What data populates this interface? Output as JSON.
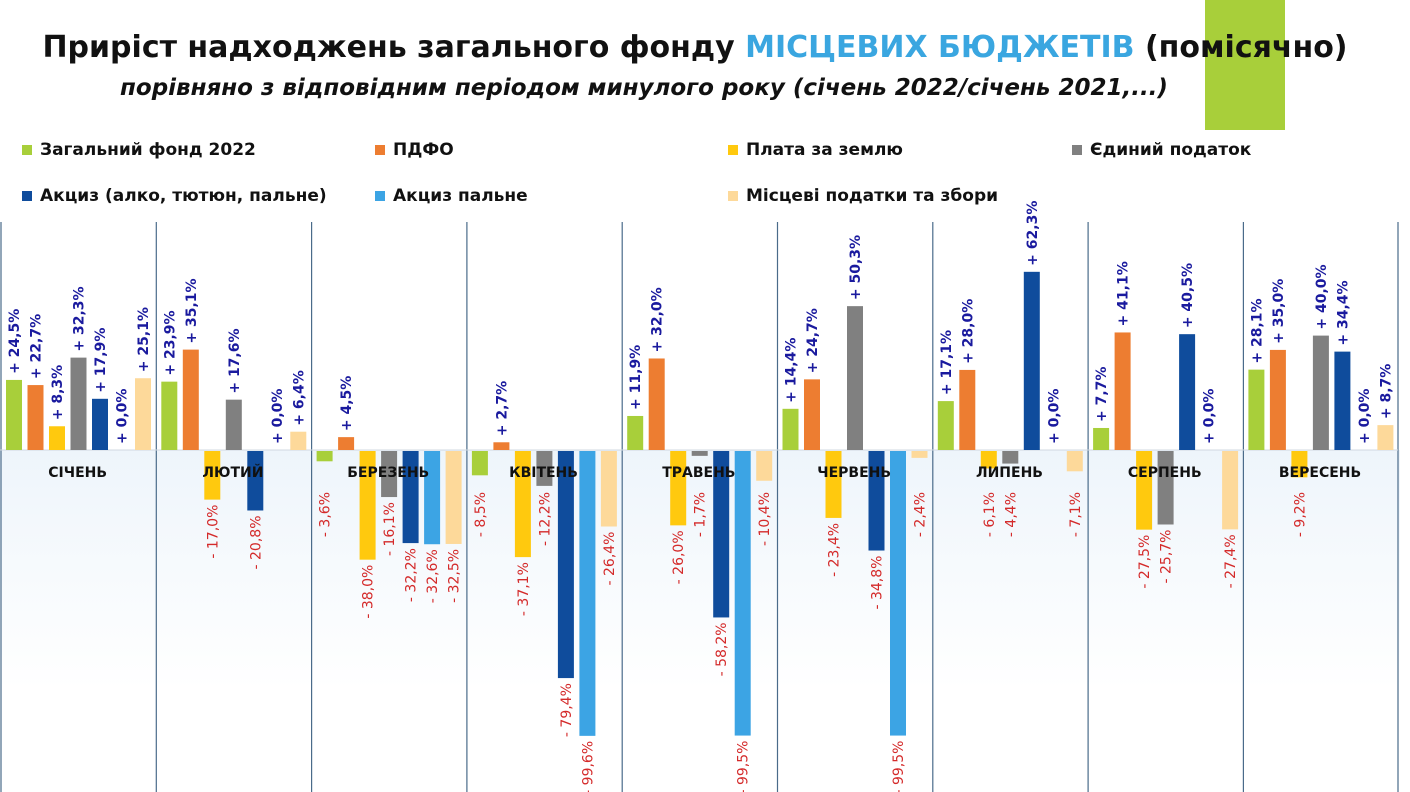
{
  "title": {
    "part1": "Приріст надходжень загального фонду ",
    "highlight": "МІСЦЕВИХ БЮДЖЕТІВ",
    "part2": " (помісячно)",
    "subtitle": "порівняно з відповідним періодом минулого року (січень 2022/січень 2021,...)"
  },
  "colors": {
    "accent": "#3aa6e0",
    "positive_label": "#1a1a9e",
    "negative_label": "#d42a2a",
    "deco": "#a8cf3a"
  },
  "chart_data": {
    "type": "bar",
    "categories": [
      "СІЧЕНЬ",
      "ЛЮТИЙ",
      "БЕРЕЗЕНЬ",
      "КВІТЕНЬ",
      "ТРАВЕНЬ",
      "ЧЕРВЕНЬ",
      "ЛИПЕНЬ",
      "СЕРПЕНЬ",
      "ВЕРЕСЕНЬ"
    ],
    "legend_position": "top",
    "grid": false,
    "ylim": [
      -100,
      65
    ],
    "series": [
      {
        "name": "Загальний фонд 2022",
        "color": "#a8cf3a",
        "values": [
          24.5,
          23.9,
          -3.6,
          -8.5,
          11.9,
          14.4,
          17.1,
          7.7,
          28.1
        ]
      },
      {
        "name": "ПДФО",
        "color": "#ed7d31",
        "values": [
          22.7,
          35.1,
          4.5,
          2.7,
          32.0,
          24.7,
          28.0,
          41.1,
          35.0
        ]
      },
      {
        "name": "Плата за землю",
        "color": "#ffc90e",
        "values": [
          8.3,
          -17.0,
          -38.0,
          -37.1,
          -26.0,
          -23.4,
          -6.1,
          -27.5,
          -9.2
        ]
      },
      {
        "name": "Єдиний податок",
        "color": "#808080",
        "values": [
          32.3,
          17.6,
          -16.1,
          -12.2,
          -1.7,
          50.3,
          -4.4,
          -25.7,
          40.0
        ]
      },
      {
        "name": "Акциз (алко, тютюн, пальне)",
        "color": "#0f4c9c",
        "values": [
          17.9,
          -20.8,
          -32.2,
          -79.4,
          -58.2,
          -34.8,
          62.3,
          40.5,
          34.4
        ]
      },
      {
        "name": "Акциз пальне",
        "color": "#3ca4e4",
        "values": [
          0.0,
          0.0,
          -32.6,
          -99.6,
          -99.5,
          -99.5,
          0.0,
          0.0,
          0.0
        ]
      },
      {
        "name": "Місцеві податки та збори",
        "color": "#fdd99a",
        "values": [
          25.1,
          6.4,
          -32.5,
          -26.4,
          -10.4,
          -2.4,
          -7.1,
          -27.4,
          8.7
        ]
      }
    ]
  }
}
